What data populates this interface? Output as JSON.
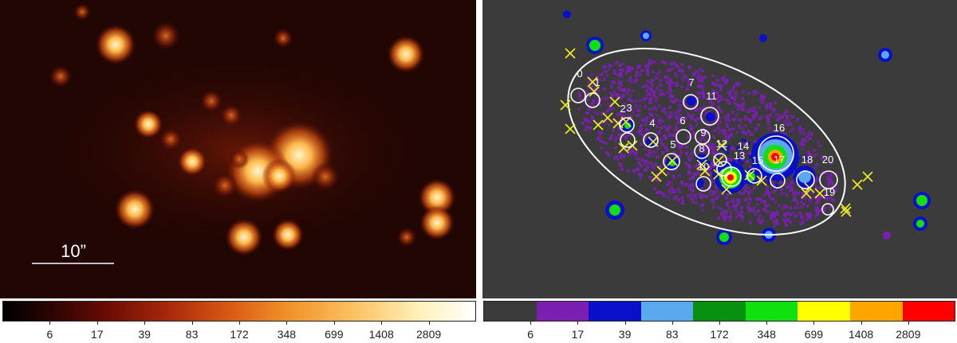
{
  "left_panel": {
    "scale_bar_label": "10”"
  },
  "left_colorbar": {
    "ticks": [
      "6",
      "17",
      "39",
      "83",
      "172",
      "348",
      "699",
      "1408",
      "2809"
    ]
  },
  "right_colorbar": {
    "colors": [
      "#3b3b3b",
      "#7a1fb0",
      "#0a10c8",
      "#5aa8ee",
      "#0a9010",
      "#10e010",
      "#ffff00",
      "#ffa500",
      "#ff0000"
    ],
    "ticks": [
      "6",
      "17",
      "39",
      "83",
      "172",
      "348",
      "699",
      "1408",
      "2809"
    ]
  },
  "right_panel": {
    "source_labels": [
      "0",
      "1",
      "2",
      "3",
      "4",
      "5",
      "6",
      "7",
      "8",
      "9",
      "10",
      "11",
      "12",
      "13",
      "14",
      "15",
      "16",
      "17",
      "18",
      "19",
      "20"
    ]
  }
}
